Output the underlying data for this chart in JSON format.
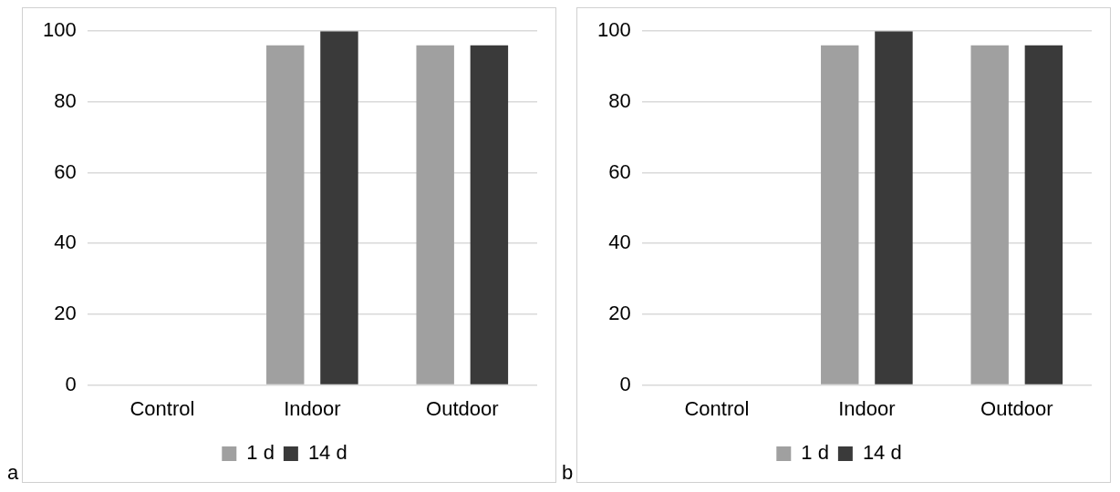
{
  "chart_data": [
    {
      "type": "bar",
      "categories": [
        "Control",
        "Indoor",
        "Outdoor"
      ],
      "series": [
        {
          "name": "1 d",
          "color": "#a0a0a0",
          "values": [
            0,
            96,
            96
          ]
        },
        {
          "name": "14 d",
          "color": "#3a3a3a",
          "values": [
            0,
            100,
            96
          ]
        }
      ],
      "ylim": [
        0,
        100
      ],
      "yticks": [
        0,
        20,
        40,
        60,
        80,
        100
      ],
      "grid": "y",
      "legend": "bottom",
      "annotations": [
        "a"
      ]
    },
    {
      "type": "bar",
      "categories": [
        "Control",
        "Indoor",
        "Outdoor"
      ],
      "series": [
        {
          "name": "1 d",
          "color": "#a0a0a0",
          "values": [
            0,
            96,
            96
          ]
        },
        {
          "name": "14 d",
          "color": "#3a3a3a",
          "values": [
            0,
            100,
            96
          ]
        }
      ],
      "ylim": [
        0,
        100
      ],
      "yticks": [
        0,
        20,
        40,
        60,
        80,
        100
      ],
      "grid": "y",
      "legend": "bottom",
      "annotations": [
        "b"
      ]
    }
  ]
}
